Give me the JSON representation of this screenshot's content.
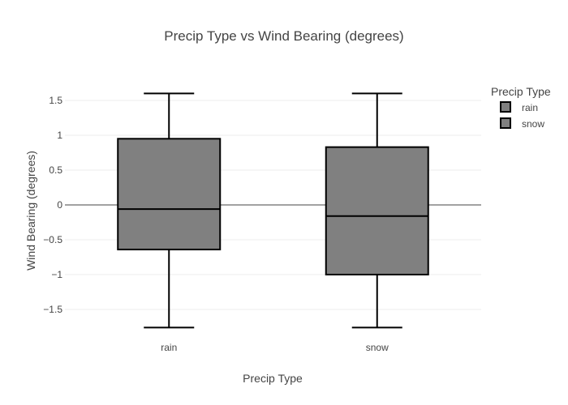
{
  "chart_data": {
    "type": "box",
    "title": "Precip Type vs Wind Bearing (degrees)",
    "xlabel": "Precip Type",
    "ylabel": "Wind Bearing (degrees)",
    "ylim": [
      -1.8,
      1.65
    ],
    "yticks": [
      1.5,
      1,
      0.5,
      0,
      -0.5,
      -1,
      -1.5
    ],
    "ytick_labels": [
      "1.5",
      "1",
      "0.5",
      "0",
      "−0.5",
      "−1",
      "−1.5"
    ],
    "categories": [
      "rain",
      "snow"
    ],
    "grid": true,
    "legend": {
      "title": "Precip Type",
      "position": "top-right"
    },
    "series": [
      {
        "name": "rain",
        "category": "rain",
        "min": -1.76,
        "q1": -0.64,
        "median": -0.06,
        "q3": 0.95,
        "max": 1.6
      },
      {
        "name": "snow",
        "category": "snow",
        "min": -1.76,
        "q1": -1.0,
        "median": -0.16,
        "q3": 0.83,
        "max": 1.6
      }
    ],
    "colors": {
      "fill": "#808080",
      "stroke": "#000000",
      "grid": "#eeeeee",
      "zeroline": "#444444"
    }
  }
}
